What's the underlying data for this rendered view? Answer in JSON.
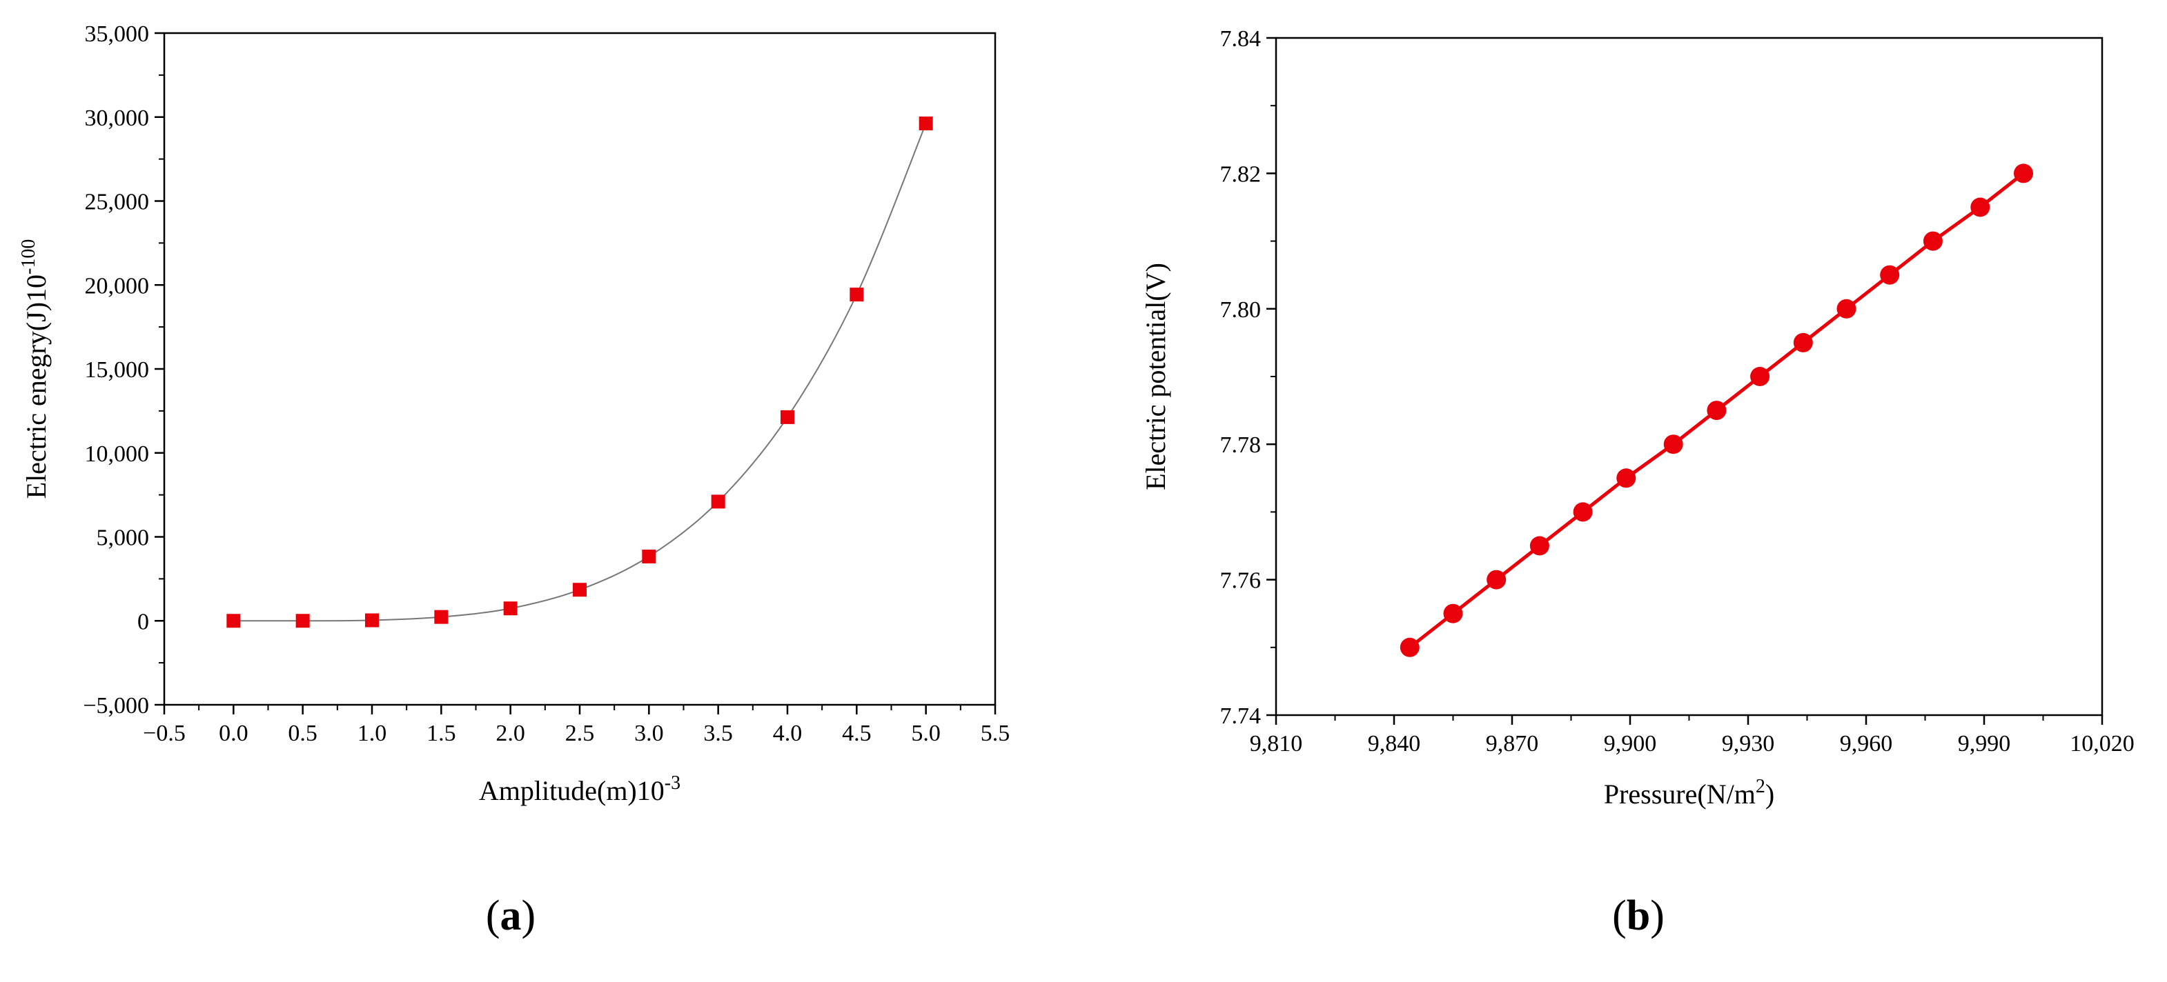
{
  "chart_data": [
    {
      "type": "scatter",
      "panel_label_parts": [
        "(",
        "a",
        ")"
      ],
      "xlabel": "Amplitude(m)10",
      "xlabel_sup": "-3",
      "ylabel": "Electric enegry(J)10",
      "ylabel_sup": "-100",
      "xlim": [
        -0.5,
        5.5
      ],
      "ylim": [
        -5000,
        35000
      ],
      "xticks": [
        -0.5,
        0.0,
        0.5,
        1.0,
        1.5,
        2.0,
        2.5,
        3.0,
        3.5,
        4.0,
        4.5,
        5.0,
        5.5
      ],
      "xtick_labels": [
        "−0.5",
        "0.0",
        "0.5",
        "1.0",
        "1.5",
        "2.0",
        "2.5",
        "3.0",
        "3.5",
        "4.0",
        "4.5",
        "5.0",
        "5.5"
      ],
      "yticks": [
        -5000,
        0,
        5000,
        10000,
        15000,
        20000,
        25000,
        30000,
        35000
      ],
      "ytick_labels": [
        "−5,000",
        "0",
        "5,000",
        "10,000",
        "15,000",
        "20,000",
        "25,000",
        "30,000",
        "35,000"
      ],
      "marker": "square",
      "marker_color": "#e8000b",
      "line_color": "#777777",
      "grid": false,
      "series": [
        {
          "x": [
            0.0,
            0.5,
            1.0,
            1.5,
            2.0,
            2.5,
            3.0,
            3.5,
            4.0,
            4.5,
            5.0
          ],
          "y": [
            0,
            0,
            30,
            230,
            740,
            1850,
            3830,
            7100,
            12130,
            19430,
            29620
          ]
        }
      ]
    },
    {
      "type": "line",
      "panel_label_parts": [
        "(",
        "b",
        ")"
      ],
      "xlabel": "Pressure(N/m",
      "xlabel_sup": "2",
      "xlabel_suffix": ")",
      "ylabel": "Electric potential(V)",
      "xlim": [
        9810,
        10020
      ],
      "ylim": [
        7.74,
        7.84
      ],
      "xticks": [
        9810,
        9840,
        9870,
        9900,
        9930,
        9960,
        9990,
        10020
      ],
      "xtick_labels": [
        "9,810",
        "9,840",
        "9,870",
        "9,900",
        "9,930",
        "9,960",
        "9,990",
        "10,020"
      ],
      "yticks": [
        7.74,
        7.76,
        7.78,
        7.8,
        7.82,
        7.84
      ],
      "ytick_labels": [
        "7.74",
        "7.76",
        "7.78",
        "7.80",
        "7.82",
        "7.84"
      ],
      "marker": "circle",
      "marker_color": "#e8000b",
      "line_color": "#e8000b",
      "grid": false,
      "series": [
        {
          "x": [
            9844,
            9855,
            9866,
            9877,
            9888,
            9899,
            9911,
            9922,
            9933,
            9944,
            9955,
            9966,
            9977,
            9989,
            10000
          ],
          "y": [
            7.75,
            7.755,
            7.76,
            7.765,
            7.77,
            7.775,
            7.78,
            7.785,
            7.79,
            7.795,
            7.8,
            7.805,
            7.81,
            7.815,
            7.82
          ]
        }
      ]
    }
  ]
}
